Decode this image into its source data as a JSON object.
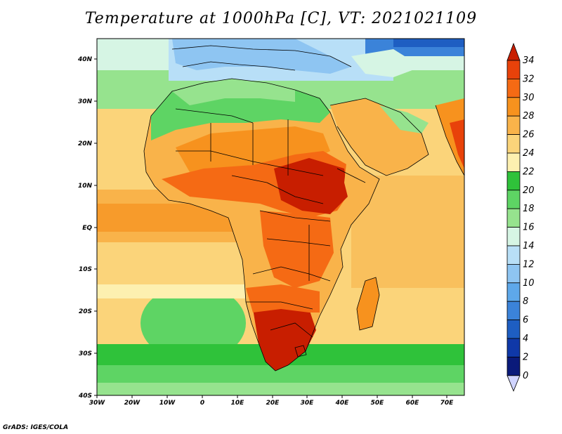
{
  "title": "Temperature at 1000hPa [C], VT: 2021021109",
  "credit": "GrADS: IGES/COLA",
  "lon_labels": [
    "30W",
    "20W",
    "10W",
    "0",
    "10E",
    "20E",
    "30E",
    "40E",
    "50E",
    "60E",
    "70E"
  ],
  "lat_labels": [
    "40N",
    "30N",
    "20N",
    "10N",
    "EQ",
    "10S",
    "20S",
    "30S",
    "40S"
  ],
  "colorbar": {
    "labels": [
      "34",
      "32",
      "30",
      "28",
      "26",
      "24",
      "22",
      "20",
      "18",
      "16",
      "14",
      "12",
      "10",
      "8",
      "6",
      "4",
      "2",
      "0"
    ],
    "colors": [
      "#c81e00",
      "#e8420a",
      "#f56a14",
      "#f7921e",
      "#f9b34a",
      "#fbd47a",
      "#fdf0b0",
      "#2fc23a",
      "#5ed464",
      "#96e38e",
      "#d6f5e4",
      "#b8dff7",
      "#8ec5f2",
      "#5ea8ea",
      "#3b83d9",
      "#1e5ec2",
      "#0f38a8",
      "#0a1a7a"
    ],
    "top_arrow_color": "#c81e00",
    "bottom_arrow_color": "#d0d4ff"
  },
  "chart_data": {
    "type": "heatmap",
    "variable": "Temperature at 1000hPa",
    "units": "C",
    "valid_time": "2021021109",
    "lon_range": [
      -30,
      75
    ],
    "lat_range": [
      -40,
      45
    ],
    "colorbar_range": [
      0,
      34
    ],
    "colorbar_interval": 2
  }
}
